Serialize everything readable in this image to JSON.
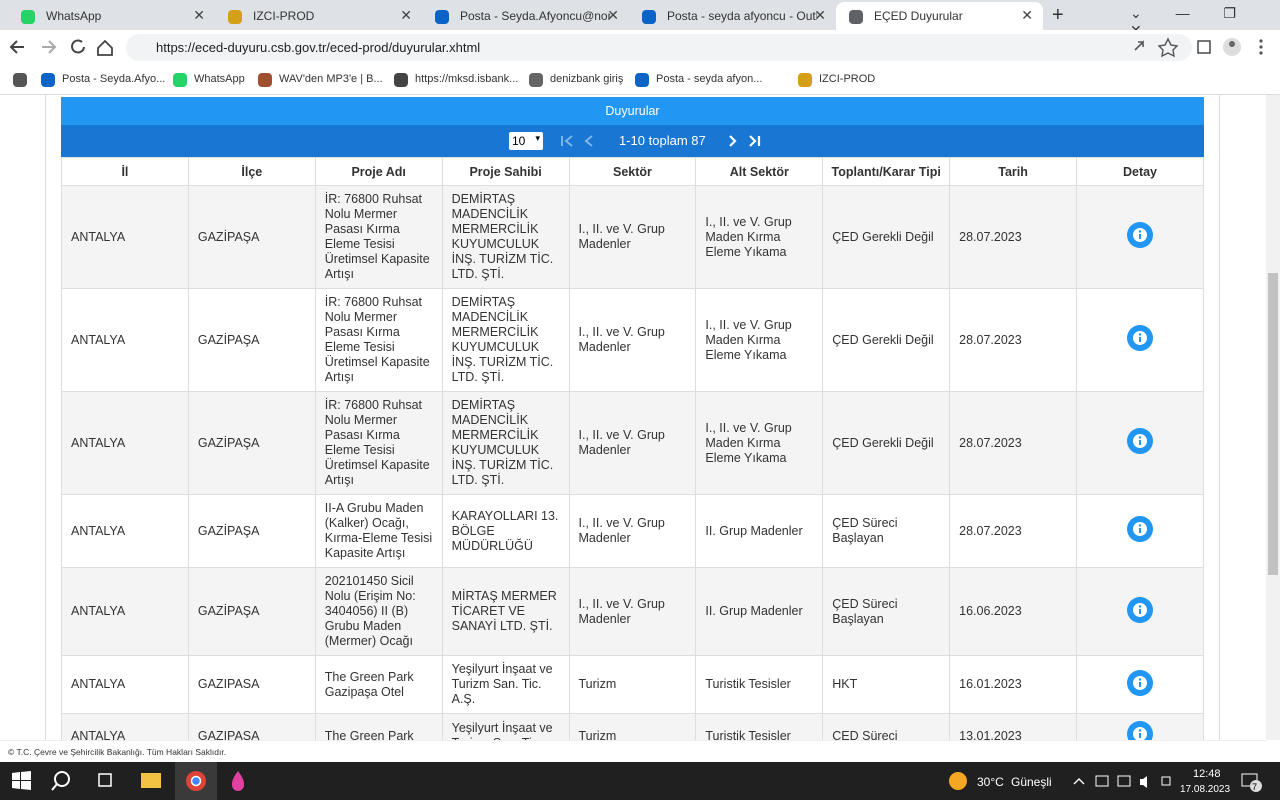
{
  "browser": {
    "tabs": [
      "WhatsApp",
      "IZCI-PROD",
      "Posta - Seyda.Afyoncu@nonsta",
      "Posta - seyda afyoncu - Outlook",
      "EÇED Duyurular"
    ],
    "url": "https://eced-duyuru.csb.gov.tr/eced-prod/duyurular.xhtml",
    "bookmarks": [
      "Posta - Seyda.Afyo...",
      "WhatsApp",
      "WAV'den MP3'e | B...",
      "https://mksd.isbank...",
      "denizbank giriş",
      "Posta - seyda afyon...",
      "IZCI-PROD"
    ]
  },
  "panel": {
    "title": "Duyurular",
    "rows_per_page": "10",
    "page_report": "1-10 toplam 87"
  },
  "table": {
    "columns": [
      "İl",
      "İlçe",
      "Proje Adı",
      "Proje Sahibi",
      "Sektör",
      "Alt Sektör",
      "Toplantı/Karar Tipi",
      "Tarih",
      "Detay"
    ],
    "rows": [
      [
        "ANTALYA",
        "GAZİPAŞA",
        "İR: 76800 Ruhsat Nolu Mermer Pasası Kırma Eleme Tesisi Üretimsel Kapasite Artışı",
        "DEMİRTAŞ MADENCİLİK MERMERCİLİK KUYUMCULUK İNŞ. TURİZM TİC. LTD. ŞTİ.",
        "I., II. ve V. Grup Madenler",
        "I., II. ve V. Grup Maden Kırma Eleme Yıkama",
        "ÇED Gerekli Değil",
        "28.07.2023"
      ],
      [
        "ANTALYA",
        "GAZİPAŞA",
        "İR: 76800 Ruhsat Nolu Mermer Pasası Kırma Eleme Tesisi Üretimsel Kapasite Artışı",
        "DEMİRTAŞ MADENCİLİK MERMERCİLİK KUYUMCULUK İNŞ. TURİZM TİC. LTD. ŞTİ.",
        "I., II. ve V. Grup Madenler",
        "I., II. ve V. Grup Maden Kırma Eleme Yıkama",
        "ÇED Gerekli Değil",
        "28.07.2023"
      ],
      [
        "ANTALYA",
        "GAZİPAŞA",
        "İR: 76800 Ruhsat Nolu Mermer Pasası Kırma Eleme Tesisi Üretimsel Kapasite Artışı",
        "DEMİRTAŞ MADENCİLİK MERMERCİLİK KUYUMCULUK İNŞ. TURİZM TİC. LTD. ŞTİ.",
        "I., II. ve V. Grup Madenler",
        "I., II. ve V. Grup Maden Kırma Eleme Yıkama",
        "ÇED Gerekli Değil",
        "28.07.2023"
      ],
      [
        "ANTALYA",
        "GAZİPAŞA",
        "II-A Grubu Maden (Kalker) Ocağı, Kırma-Eleme Tesisi Kapasite Artışı",
        "KARAYOLLARI 13. BÖLGE MÜDÜRLÜĞÜ",
        "I., II. ve V. Grup Madenler",
        "II. Grup Madenler",
        "ÇED Süreci Başlayan",
        "28.07.2023"
      ],
      [
        "ANTALYA",
        "GAZİPAŞA",
        "202101450 Sicil Nolu (Erişim No: 3404056) II (B) Grubu Maden (Mermer) Ocağı",
        "MİRTAŞ MERMER TİCARET VE SANAYİ LTD. ŞTİ.",
        "I., II. ve V. Grup Madenler",
        "II. Grup Madenler",
        "ÇED Süreci Başlayan",
        "16.06.2023"
      ],
      [
        "ANTALYA",
        "GAZIPASA",
        "The Green Park Gazipaşa Otel",
        "Yeşilyurt İnşaat ve Turizm San. Tic. A.Ş.",
        "Turizm",
        "Turistik Tesisler",
        "HKT",
        "16.01.2023"
      ],
      [
        "ANTALYA",
        "GAZIPASA",
        "The Green Park",
        "Yeşilyurt İnşaat ve Turizm San. Tic.",
        "Turizm",
        "Turistik Tesisler",
        "ÇED Süreci",
        "13.01.2023"
      ]
    ]
  },
  "footer": "© T.C. Çevre ve Şehircilik Bakanlığı. Tüm Hakları Saklıdır.",
  "taskbar": {
    "temperature": "30°C",
    "weather": "Güneşli",
    "time": "12:48",
    "date": "17.08.2023",
    "notifications": "7"
  }
}
